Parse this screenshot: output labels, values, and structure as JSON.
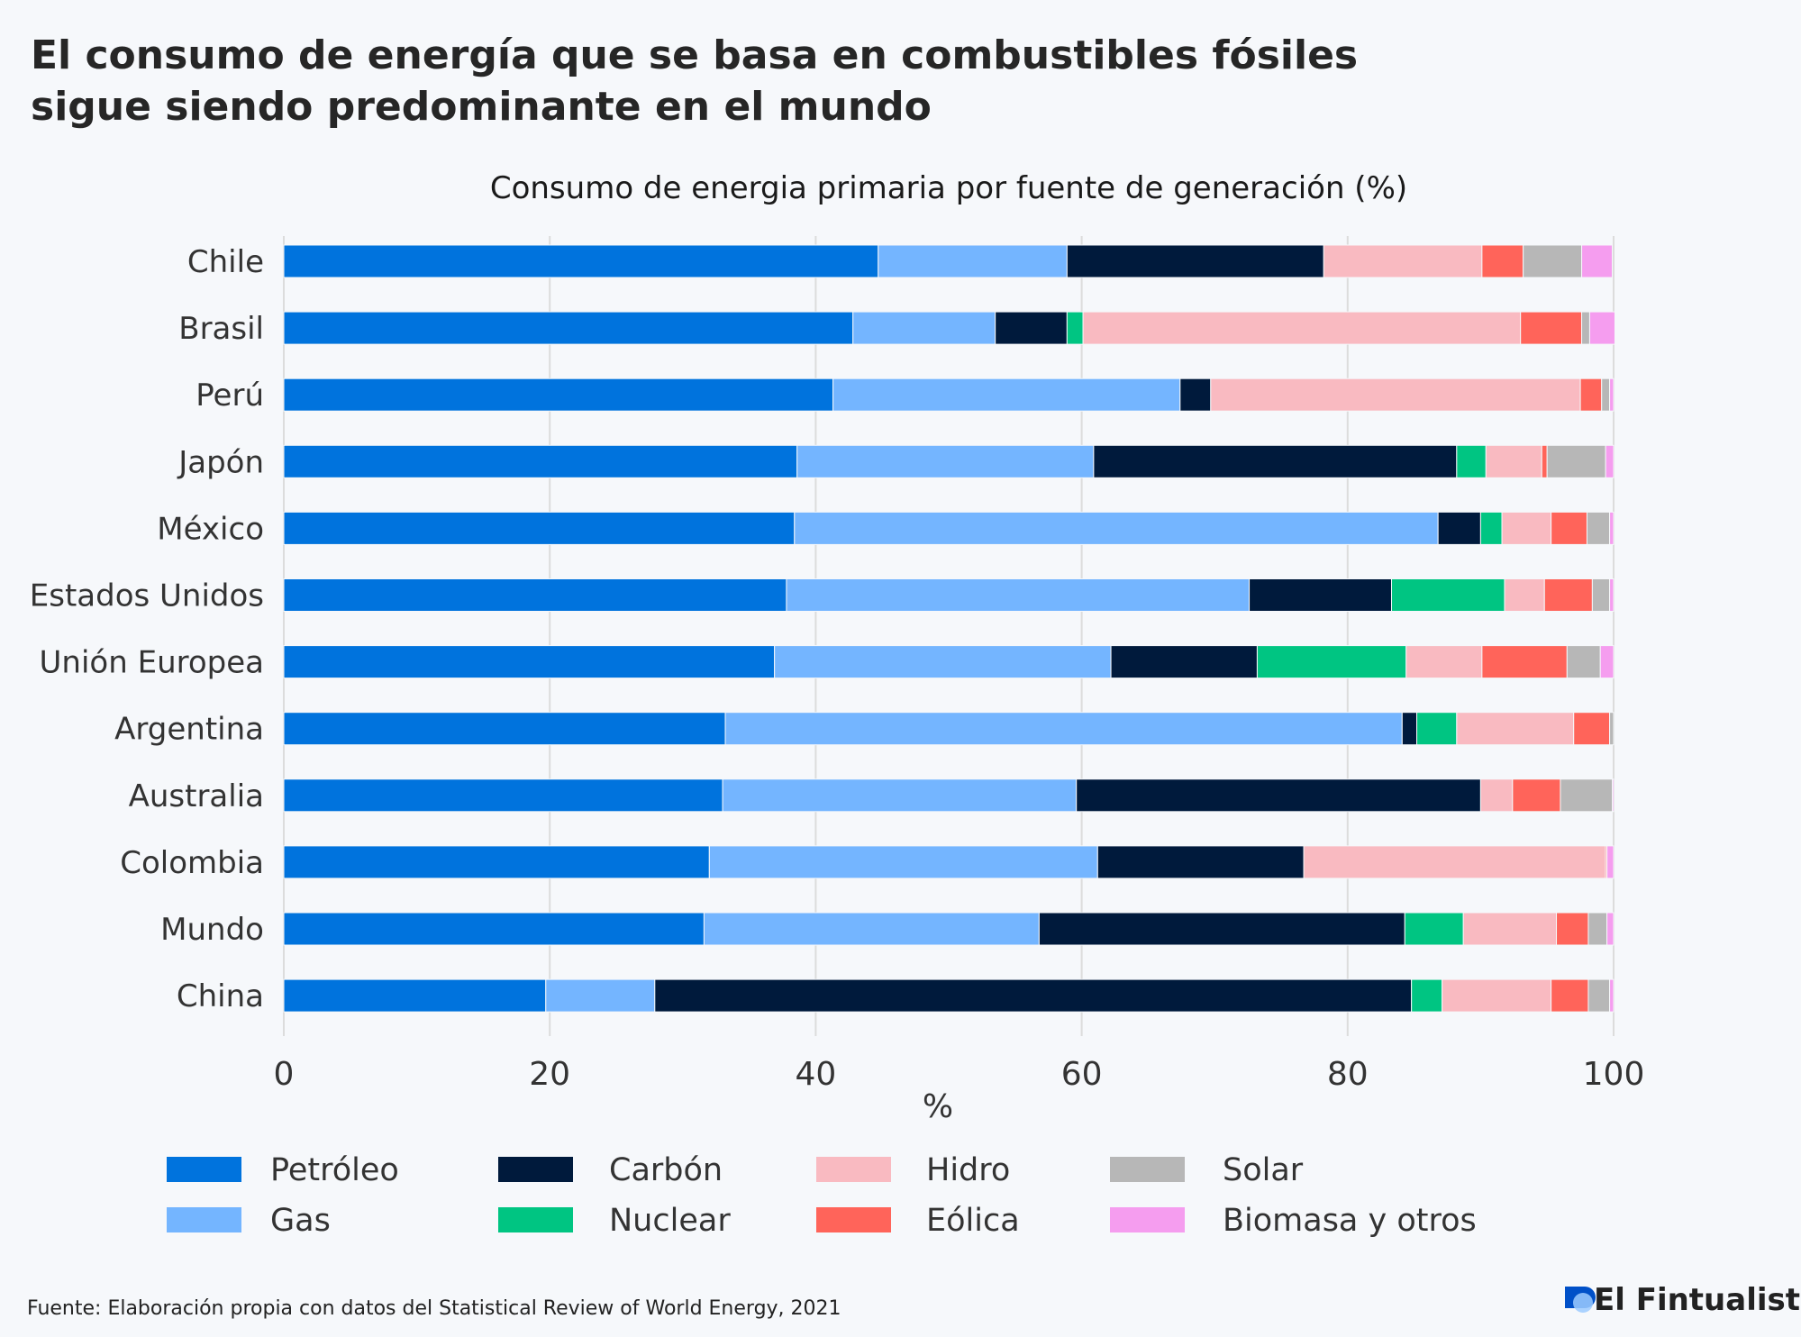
{
  "title_lines": [
    "El consumo de energía que se basa en combustibles fósiles",
    "sigue siendo predominante en el mundo"
  ],
  "source": "Fuente: Elaboración propia con datos del Statistical Review of World Energy, 2021",
  "logo": "El Fintualist",
  "chart_data": {
    "type": "bar",
    "orientation": "horizontal",
    "stacked": true,
    "title": "Consumo de energia primaria por fuente de generación (%)",
    "xlabel": "%",
    "ylabel": "",
    "xlim": [
      0,
      100
    ],
    "xticks": [
      "0",
      "20",
      "40",
      "60",
      "80",
      "100"
    ],
    "grid": true,
    "legend_placement": "bottom",
    "categories": [
      "Chile",
      "Brasil",
      "Perú",
      "Japón",
      "México",
      "Estados Unidos",
      "Unión Europea",
      "Argentina",
      "Australia",
      "Colombia",
      "Mundo",
      "China"
    ],
    "series": [
      {
        "name": "Petróleo",
        "color": "#0073DD",
        "values": [
          44.7,
          42.8,
          41.3,
          38.6,
          38.4,
          37.8,
          36.9,
          33.2,
          33.0,
          32.0,
          31.6,
          19.7
        ]
      },
      {
        "name": "Gas",
        "color": "#74B5FF",
        "values": [
          14.2,
          10.7,
          26.1,
          22.3,
          48.4,
          34.8,
          25.3,
          50.9,
          26.6,
          29.2,
          25.2,
          8.2
        ]
      },
      {
        "name": "Carbón",
        "color": "#001A3C",
        "values": [
          19.3,
          5.4,
          2.3,
          27.3,
          3.2,
          10.7,
          11.0,
          1.1,
          30.4,
          15.5,
          27.5,
          56.9
        ]
      },
      {
        "name": "Nuclear",
        "color": "#00C582",
        "values": [
          0,
          1.2,
          0,
          2.2,
          1.6,
          8.5,
          11.2,
          3.0,
          0,
          0,
          4.4,
          2.3
        ]
      },
      {
        "name": "Hidro",
        "color": "#F9BAC1",
        "values": [
          11.9,
          32.9,
          27.8,
          4.2,
          3.7,
          3.0,
          5.7,
          8.8,
          2.4,
          22.7,
          7.0,
          8.2
        ]
      },
      {
        "name": "Eólica",
        "color": "#FF645A",
        "values": [
          3.1,
          4.6,
          1.6,
          0.4,
          2.7,
          3.6,
          6.4,
          2.7,
          3.6,
          0.1,
          2.4,
          2.8
        ]
      },
      {
        "name": "Solar",
        "color": "#B7B7B7",
        "values": [
          4.4,
          0.6,
          0.6,
          4.4,
          1.7,
          1.3,
          2.5,
          0.3,
          3.9,
          0,
          1.4,
          1.6
        ]
      },
      {
        "name": "Biomasa y otros",
        "color": "#F59DEF",
        "values": [
          2.3,
          1.9,
          0.3,
          0.6,
          0.3,
          0.3,
          1.0,
          0,
          0.1,
          0.5,
          0.5,
          0.3
        ]
      }
    ],
    "legend_order": [
      "Petróleo",
      "Carbón",
      "Hidro",
      "Solar",
      "Gas",
      "Nuclear",
      "Eólica",
      "Biomasa y otros"
    ]
  }
}
